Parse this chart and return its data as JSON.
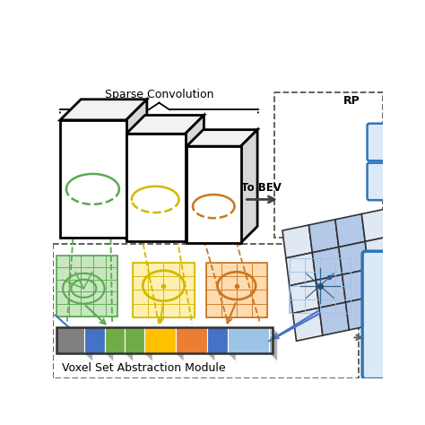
{
  "bg_color": "#ffffff",
  "sparse_conv_label": "Sparse Convolution",
  "vsa_label": "Voxel Set Abstraction Module",
  "bev_label": "To BEV",
  "rpn_label": "RP",
  "colors": {
    "green": "#5aaa50",
    "yellow": "#d4b800",
    "orange": "#cc7722",
    "blue": "#4472c4",
    "light_blue": "#9dc3e6",
    "dark_blue": "#1f4e79",
    "grid_blue_hi": "#b4c9e8",
    "grid_blue_lo": "#dce6f1",
    "box_fill_top": "#f2f2f2",
    "box_fill_right": "#d8d8d8",
    "strip_gray": "#808080",
    "strip_blue1": "#4472c4",
    "strip_green": "#70ad47",
    "strip_yellow": "#ffc000",
    "strip_orange": "#ed7d31",
    "strip_lblue": "#9dc3e6",
    "rpn_box_fill": "#dce9f7",
    "rpn_box_edge": "#2e75b6",
    "mlp_box_fill": "#dce9f7",
    "mlp_box_edge": "#2e75b6",
    "dashed_region": "#555555",
    "bev_arrow": "#404040",
    "right_arrow": "#808080"
  }
}
